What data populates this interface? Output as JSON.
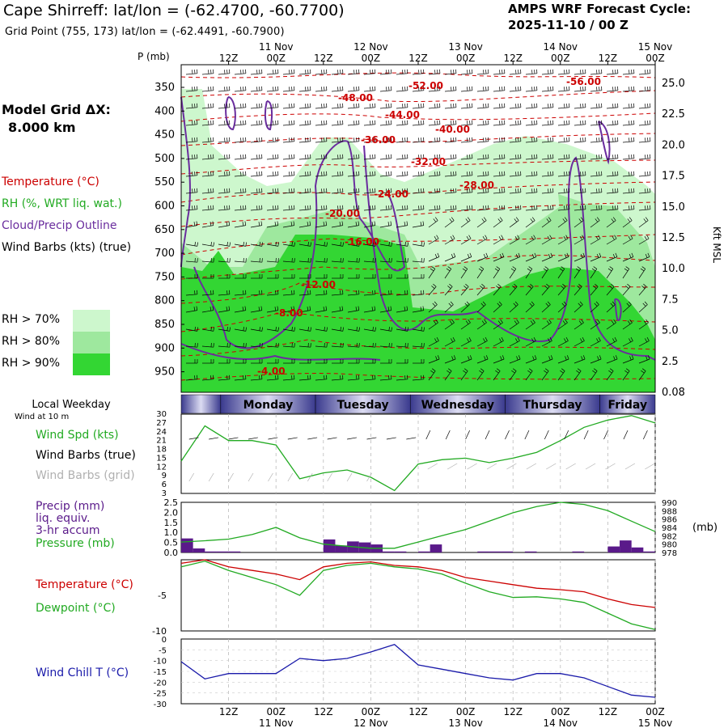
{
  "header": {
    "title": "Cape Shirreff:  lat/lon = (-62.4700, -60.7700)",
    "grid_point": "Grid Point (755, 173) lat/lon = (-62.4491, -60.7900)",
    "forecast_title": "AMPS WRF Forecast Cycle:",
    "forecast_cycle": "2025-11-10 / 00  Z"
  },
  "left_legend": {
    "model_grid_label": "Model Grid ΔX:",
    "model_grid_value": "8.000 km",
    "temperature": "Temperature (°C)",
    "rh": "RH (%, WRT liq. wat.)",
    "cloud": "Cloud/Precip Outline",
    "wind_barbs": "Wind Barbs (kts) (true)",
    "rh70": "RH > 70%",
    "rh80": "RH > 80%",
    "rh90": "RH > 90%"
  },
  "colors": {
    "temperature": "#cc0000",
    "rh_text": "#22aa22",
    "cloud": "#6a2d9e",
    "rh70": "#cdf7cd",
    "rh80": "#9ee89e",
    "rh90": "#33d633",
    "precip_bar": "#5a1a8a",
    "pressure": "#22aa22",
    "dewpoint": "#22aa22",
    "windchill": "#1a1aaa",
    "gridbarbs": "#b0b0b0"
  },
  "time_axis": {
    "top_labels": [
      "12Z",
      "00Z",
      "12Z",
      "00Z",
      "12Z",
      "00Z",
      "12Z",
      "00Z",
      "12Z",
      "00Z"
    ],
    "date_labels": [
      "11 Nov",
      "12 Nov",
      "13 Nov",
      "14 Nov",
      "15 Nov"
    ],
    "weekdays": [
      "Monday",
      "Tuesday",
      "Wednesday",
      "Thursday",
      "Friday"
    ],
    "local_weekday_label": "Local Weekday",
    "wind_10m_label": "Wind at 10 m"
  },
  "chart_data": [
    {
      "type": "heatmap",
      "name": "time-height cross section",
      "y_left_label": "P (mb)",
      "y_left_ticks": [
        "350",
        "400",
        "450",
        "500",
        "550",
        "600",
        "650",
        "700",
        "750",
        "800",
        "850",
        "900",
        "950"
      ],
      "y_right_label": "Kft MSL",
      "y_right_ticks": [
        "25.0",
        "22.5",
        "20.0",
        "17.5",
        "15.0",
        "12.5",
        "10.0",
        "7.5",
        "5.0",
        "2.5",
        "0.08"
      ],
      "temperature_labels": [
        "-52.00",
        "-56.00",
        "-48.00",
        "-44.00",
        "-40.00",
        "-36.00",
        "-32.00",
        "-28.00",
        "-24.00",
        "-20.00",
        "-16.00",
        "-12.00",
        "-8.00",
        "-4.00"
      ]
    },
    {
      "type": "line",
      "name": "10 m wind speed",
      "labels": {
        "speed": "Wind Spd (kts)",
        "barbs_true": "Wind Barbs (true)",
        "barbs_grid": "Wind Barbs (grid)"
      },
      "ylim": [
        3,
        30
      ],
      "y_ticks": [
        "30",
        "27",
        "24",
        "21",
        "18",
        "15",
        "12",
        "9",
        "6",
        "3"
      ],
      "x_hours": [
        0,
        6,
        12,
        18,
        24,
        30,
        36,
        42,
        48,
        54,
        60,
        66,
        72,
        78,
        84,
        90,
        96,
        102,
        108,
        114,
        120
      ],
      "values": [
        14,
        26,
        21,
        21,
        19.5,
        8,
        10,
        11,
        8.5,
        4,
        13,
        14.5,
        15,
        13.5,
        15,
        17,
        21,
        25.5,
        28,
        29.5,
        27
      ]
    },
    {
      "type": "bar",
      "name": "3-hr precipitation and pressure",
      "labels": {
        "precip": "Precip (mm)",
        "liq": "liq. equiv.",
        "accum": "3-hr accum",
        "pressure": "Pressure (mb)",
        "pressure_unit": "(mb)"
      },
      "y_left_ticks": [
        "2.5",
        "2.0",
        "1.5",
        "1.0",
        "0.5",
        "0.0"
      ],
      "y_right_ticks": [
        "990",
        "988",
        "986",
        "984",
        "982",
        "980",
        "978"
      ],
      "precip_hours": [
        0,
        3,
        6,
        9,
        12,
        15,
        18,
        21,
        24,
        27,
        30,
        33,
        36,
        39,
        42,
        45,
        48,
        51,
        54,
        57,
        60,
        63,
        66,
        69,
        72,
        75,
        78,
        81,
        84,
        87,
        90,
        93,
        96,
        99,
        102,
        105,
        108,
        111,
        114,
        117
      ],
      "precip_mm": [
        0.7,
        0.2,
        0.05,
        0.05,
        0.05,
        0.0,
        0.0,
        0.0,
        0.0,
        0.0,
        0.0,
        0.0,
        0.65,
        0.35,
        0.55,
        0.5,
        0.4,
        0.05,
        0.05,
        0.0,
        0.05,
        0.4,
        0.0,
        0.0,
        0.0,
        0.05,
        0.05,
        0.05,
        0.0,
        0.05,
        0.0,
        0.0,
        0.0,
        0.05,
        0.0,
        0.0,
        0.3,
        0.6,
        0.25,
        0.05
      ],
      "pressure_hours": [
        0,
        6,
        12,
        18,
        24,
        30,
        36,
        42,
        48,
        54,
        60,
        66,
        72,
        78,
        84,
        90,
        96,
        102,
        108,
        114,
        120
      ],
      "pressure_mb": [
        980.5,
        980.8,
        981.2,
        982.3,
        984.0,
        981.5,
        980.0,
        979.5,
        979.0,
        979.0,
        980.5,
        982.0,
        983.5,
        985.5,
        987.5,
        989.0,
        990.0,
        989.5,
        988.0,
        985.5,
        983.0
      ],
      "ylim": [
        0,
        2.5
      ],
      "pressure_ylim": [
        978,
        990
      ]
    },
    {
      "type": "line",
      "name": "temperature and dewpoint",
      "labels": {
        "temp": "Temperature (°C)",
        "dew": "Dewpoint (°C)"
      },
      "y_ticks": [
        "-5",
        "-10"
      ],
      "ylim": [
        -10,
        0
      ],
      "x_hours": [
        0,
        6,
        12,
        18,
        24,
        30,
        36,
        42,
        48,
        54,
        60,
        66,
        72,
        78,
        84,
        90,
        96,
        102,
        108,
        114,
        120
      ],
      "temperature": [
        -0.5,
        0.0,
        -1.0,
        -1.5,
        -2.0,
        -2.8,
        -1.0,
        -0.5,
        -0.3,
        -0.8,
        -1.0,
        -1.5,
        -2.5,
        -3.0,
        -3.5,
        -4.0,
        -4.2,
        -4.5,
        -5.5,
        -6.3,
        -6.7
      ],
      "dewpoint": [
        -1.0,
        -0.2,
        -1.5,
        -2.5,
        -3.5,
        -5.0,
        -1.5,
        -0.8,
        -0.5,
        -1.0,
        -1.3,
        -2.0,
        -3.3,
        -4.5,
        -5.3,
        -5.2,
        -5.5,
        -6.0,
        -7.5,
        -9.0,
        -9.8
      ]
    },
    {
      "type": "line",
      "name": "wind chill temperature",
      "labels": {
        "windchill": "Wind Chill T (°C)"
      },
      "y_ticks": [
        "-5",
        "-10",
        "-15",
        "-20",
        "-25",
        "-30",
        "0"
      ],
      "ylim": [
        -30,
        0
      ],
      "x_hours": [
        0,
        6,
        12,
        18,
        24,
        30,
        36,
        42,
        48,
        54,
        60,
        66,
        72,
        78,
        84,
        90,
        96,
        102,
        108,
        114,
        120
      ],
      "windchill": [
        -10.5,
        -18.5,
        -16,
        -16,
        -16,
        -9,
        -10,
        -9,
        -6,
        -2.5,
        -12,
        -14,
        -16,
        -18,
        -19,
        -16,
        -16,
        -18,
        -22,
        -26,
        -27
      ]
    }
  ]
}
